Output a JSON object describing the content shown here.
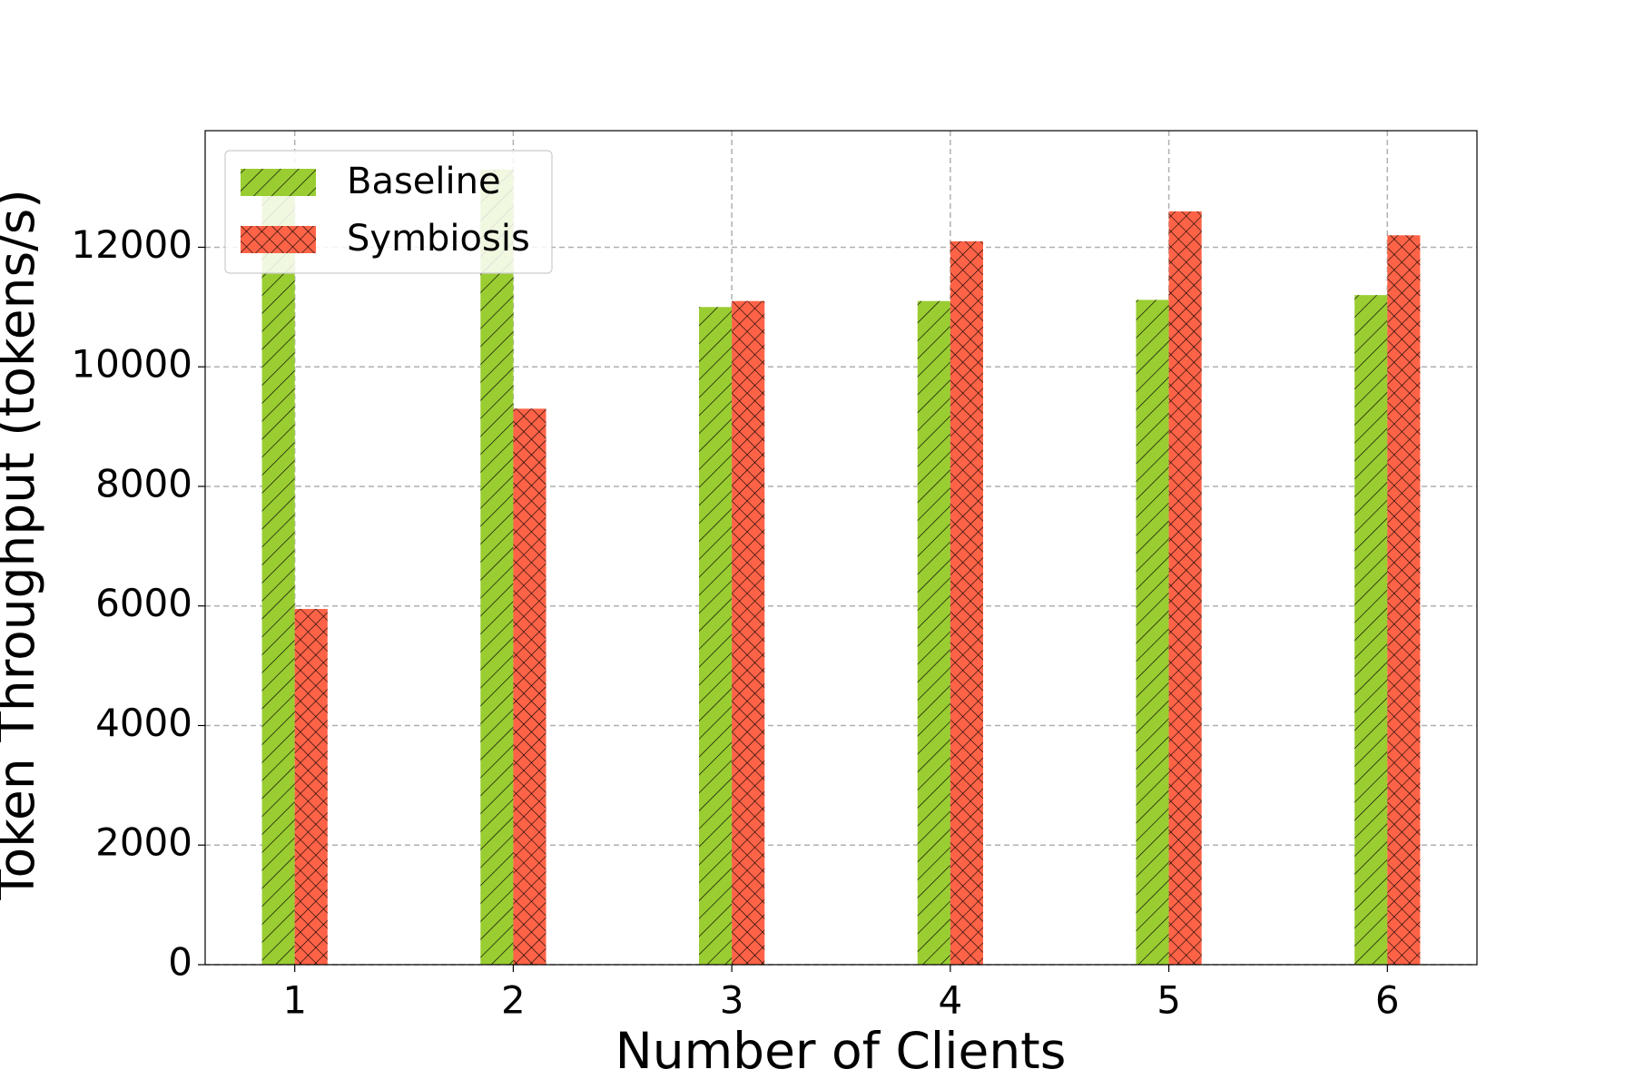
{
  "chart_data": {
    "type": "bar",
    "title": null,
    "x_label": "Number of Clients",
    "y_label": "Token Throughput (tokens/s)",
    "x": [
      1,
      2,
      3,
      4,
      5,
      6
    ],
    "xlim": [
      0.59,
      6.41
    ],
    "xticks": [
      1,
      2,
      3,
      4,
      5,
      6
    ],
    "ylim": [
      0,
      13950
    ],
    "yticks": [
      0,
      2000,
      4000,
      6000,
      8000,
      10000,
      12000
    ],
    "grid": true,
    "legend": "upper left",
    "series": [
      {
        "name": "Baseline",
        "color": "#9acd32",
        "hatch": "/",
        "values": [
          12900,
          13300,
          11000,
          11100,
          11120,
          11200
        ]
      },
      {
        "name": "Symbiosis",
        "color": "#ff6347",
        "hatch": "x",
        "values": [
          5950,
          9300,
          11100,
          12100,
          12600,
          12200
        ]
      }
    ]
  }
}
